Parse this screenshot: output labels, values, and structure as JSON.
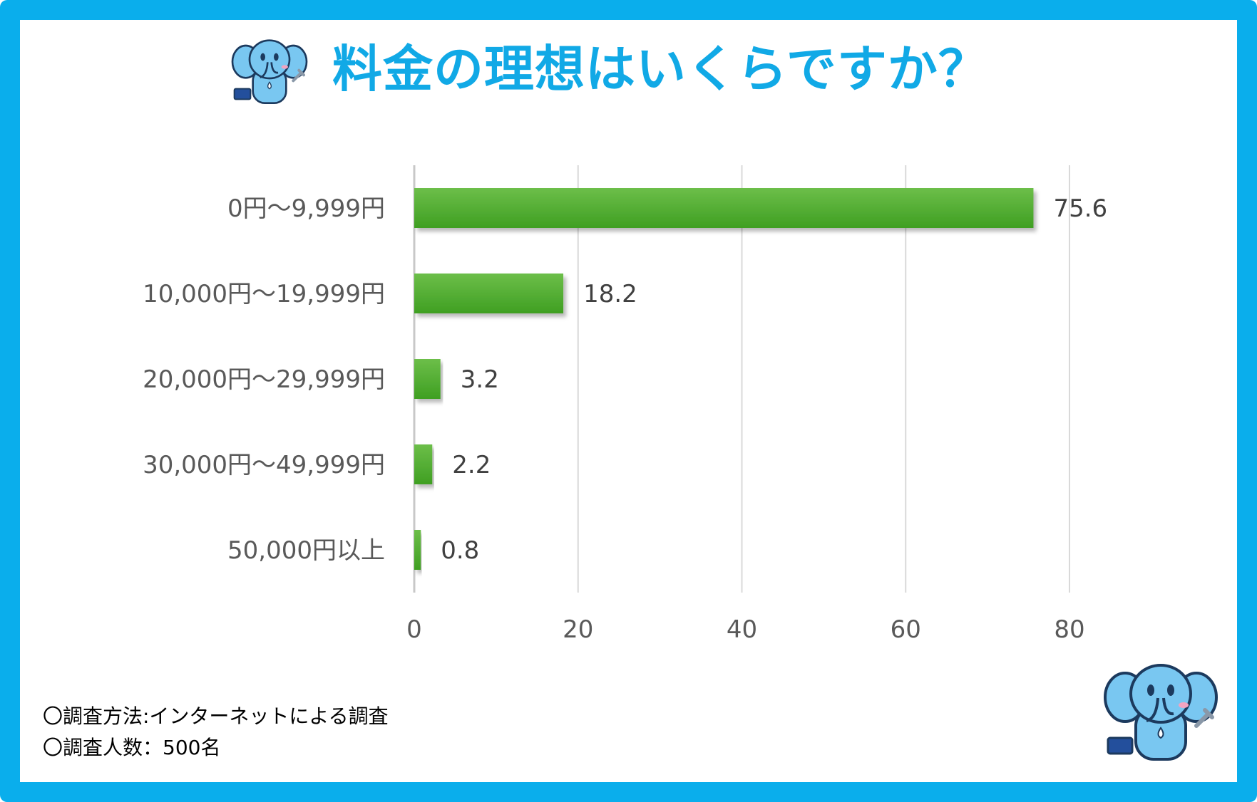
{
  "title": "料金の理想はいくらですか？",
  "chart_data": {
    "type": "bar",
    "orientation": "horizontal",
    "categories": [
      "0円〜9,999円",
      "10,000円〜19,999円",
      "20,000円〜29,999円",
      "30,000円〜49,999円",
      "50,000円以上"
    ],
    "values": [
      75.6,
      18.2,
      3.2,
      2.2,
      0.8
    ],
    "data_labels": [
      "75.6",
      "18.2",
      "3.2",
      "2.2",
      "0.8"
    ],
    "xlim": [
      0,
      80
    ],
    "xticks": [
      0,
      20,
      40,
      60,
      80
    ],
    "grid": true,
    "bar_color": "#4aa82a"
  },
  "notes": {
    "method": "〇調査方法:インターネットによる調査",
    "count": "〇調査人数：500名"
  },
  "colors": {
    "frame": "#0aaeec",
    "title": "#11a9e6",
    "mascot": "#79c7f1"
  },
  "mascot_icon": "elephant-mascot-icon"
}
